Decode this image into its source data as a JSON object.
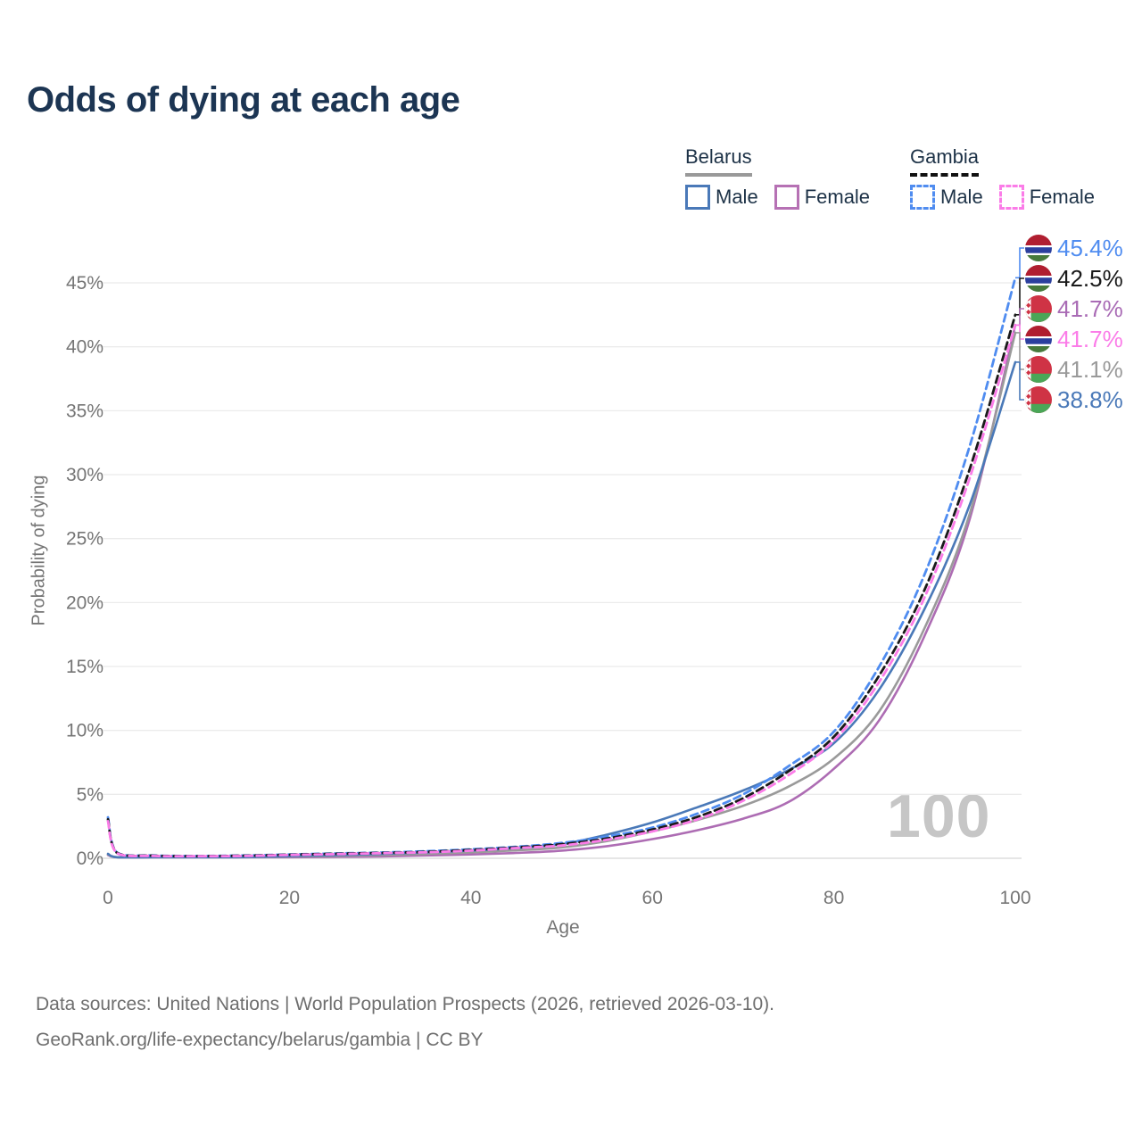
{
  "title": "Odds of dying at each age",
  "legend": {
    "groups": [
      {
        "label": "Belarus",
        "line_style": "solid",
        "underline_color": "#999999",
        "items": [
          {
            "label": "Male",
            "color": "#4a79b8",
            "dashed": false
          },
          {
            "label": "Female",
            "color": "#b671b4",
            "dashed": false
          }
        ]
      },
      {
        "label": "Gambia",
        "line_style": "dashed",
        "underline_color": "#111111",
        "items": [
          {
            "label": "Male",
            "color": "#4f8cf0",
            "dashed": true
          },
          {
            "label": "Female",
            "color": "#fb7ce8",
            "dashed": true
          }
        ]
      }
    ]
  },
  "chart_data": {
    "type": "line",
    "title": "Odds of dying at each age",
    "xlabel": "Age",
    "ylabel": "Probability of dying",
    "xlim": [
      0,
      100
    ],
    "ylim_pct": [
      0,
      47
    ],
    "x_ticks": [
      0,
      20,
      40,
      60,
      80,
      100
    ],
    "y_ticks_pct": [
      0,
      5,
      10,
      15,
      20,
      25,
      30,
      35,
      40,
      45
    ],
    "grid": "horizontal",
    "legend_position": "top-right",
    "watermark": "100",
    "ages": [
      0,
      1,
      5,
      10,
      15,
      20,
      25,
      30,
      35,
      40,
      45,
      50,
      55,
      60,
      65,
      70,
      75,
      80,
      85,
      90,
      95,
      100
    ],
    "series": [
      {
        "name": "Gambia — Male",
        "country": "Gambia",
        "sex": "male",
        "flag": "gambia",
        "color": "#4f8cf0",
        "label_color": "#4f8cf0",
        "dashed": true,
        "end_label": "45.4%",
        "end_value_pct": 45.4,
        "values_pct": [
          3.2,
          0.45,
          0.22,
          0.18,
          0.22,
          0.3,
          0.38,
          0.45,
          0.55,
          0.7,
          0.9,
          1.2,
          1.7,
          2.4,
          3.5,
          5.0,
          7.2,
          9.9,
          15.0,
          22.2,
          32.3,
          45.4
        ]
      },
      {
        "name": "Gambia — Both sexes",
        "country": "Gambia",
        "sex": "both",
        "flag": "gambia",
        "color": "#1a1a1a",
        "label_color": "#1a1a1a",
        "dashed": true,
        "end_label": "42.5%",
        "end_value_pct": 42.5,
        "values_pct": [
          3.05,
          0.42,
          0.2,
          0.17,
          0.2,
          0.28,
          0.35,
          0.42,
          0.5,
          0.65,
          0.85,
          1.1,
          1.55,
          2.25,
          3.25,
          4.7,
          6.8,
          9.5,
          14.3,
          21.0,
          30.5,
          42.5
        ]
      },
      {
        "name": "Belarus — Female",
        "country": "Belarus",
        "sex": "female",
        "flag": "belarus",
        "color": "#ad6cb3",
        "label_color": "#a96bb5",
        "dashed": false,
        "end_label": "41.7%",
        "end_value_pct": 41.7,
        "values_pct": [
          0.25,
          0.045,
          0.035,
          0.03,
          0.05,
          0.08,
          0.11,
          0.15,
          0.22,
          0.3,
          0.42,
          0.6,
          0.95,
          1.5,
          2.2,
          3.1,
          4.4,
          7.0,
          10.8,
          17.4,
          26.6,
          41.7
        ]
      },
      {
        "name": "Gambia — Female",
        "country": "Gambia",
        "sex": "female",
        "flag": "gambia",
        "color": "#fb7ce8",
        "label_color": "#fb7ce8",
        "dashed": true,
        "end_label": "41.7%",
        "end_value_pct": 41.7,
        "values_pct": [
          2.9,
          0.4,
          0.18,
          0.16,
          0.18,
          0.26,
          0.32,
          0.4,
          0.47,
          0.6,
          0.8,
          1.0,
          1.45,
          2.1,
          3.05,
          4.5,
          6.5,
          9.2,
          13.8,
          20.4,
          29.8,
          41.7
        ]
      },
      {
        "name": "Belarus — Both sexes",
        "country": "Belarus",
        "sex": "both",
        "flag": "belarus",
        "color": "#9a9a9a",
        "label_color": "#9a9a9a",
        "dashed": false,
        "end_label": "41.1%",
        "end_value_pct": 41.1,
        "values_pct": [
          0.3,
          0.05,
          0.04,
          0.035,
          0.07,
          0.13,
          0.19,
          0.26,
          0.35,
          0.47,
          0.62,
          0.85,
          1.35,
          2.1,
          3.0,
          4.1,
          5.6,
          7.8,
          11.5,
          18.0,
          27.0,
          41.1
        ]
      },
      {
        "name": "Belarus — Male",
        "country": "Belarus",
        "sex": "male",
        "flag": "belarus",
        "color": "#4a79b8",
        "label_color": "#4a79b8",
        "dashed": false,
        "end_label": "38.8%",
        "end_value_pct": 38.8,
        "values_pct": [
          0.35,
          0.06,
          0.045,
          0.04,
          0.09,
          0.17,
          0.25,
          0.34,
          0.46,
          0.6,
          0.8,
          1.1,
          1.85,
          2.8,
          4.0,
          5.3,
          6.9,
          9.0,
          13.2,
          19.5,
          27.7,
          38.8
        ]
      }
    ]
  },
  "footer": {
    "line1": "Data sources: United Nations | World Population Prospects (2026, retrieved 2026-03-10).",
    "line2": "GeoRank.org/life-expectancy/belarus/gambia | CC BY"
  },
  "colors": {
    "title": "#1c3553",
    "axis_text": "#757575",
    "gridline": "#ebebeb",
    "baseline": "#d8d8d8",
    "watermark": "#c6c6c6",
    "footer_text": "#6e6e6e"
  }
}
